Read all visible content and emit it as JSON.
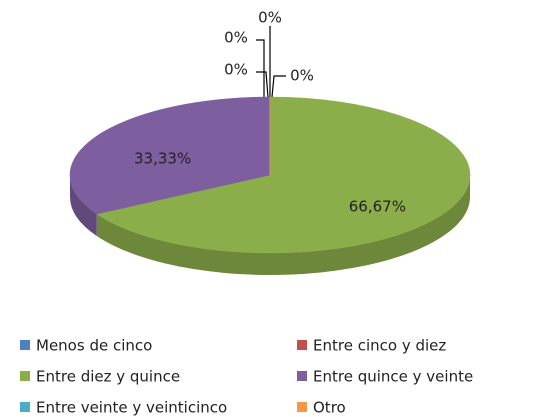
{
  "chart_data": {
    "type": "pie",
    "categories": [
      "Menos de cinco",
      "Entre cinco y diez",
      "Entre diez y quince",
      "Entre quince y veinte",
      "Entre veinte y veinticinco",
      "Otro"
    ],
    "values": [
      0,
      0,
      66.67,
      33.33,
      0,
      0
    ],
    "value_labels": [
      "0%",
      "0%",
      "66,67%",
      "33,33%",
      "0%",
      "0%"
    ],
    "colors": [
      "#4f81bd",
      "#c0504d",
      "#8cae4a",
      "#7d5e9f",
      "#4bacc6",
      "#f79646"
    ],
    "legend": "bottom"
  }
}
